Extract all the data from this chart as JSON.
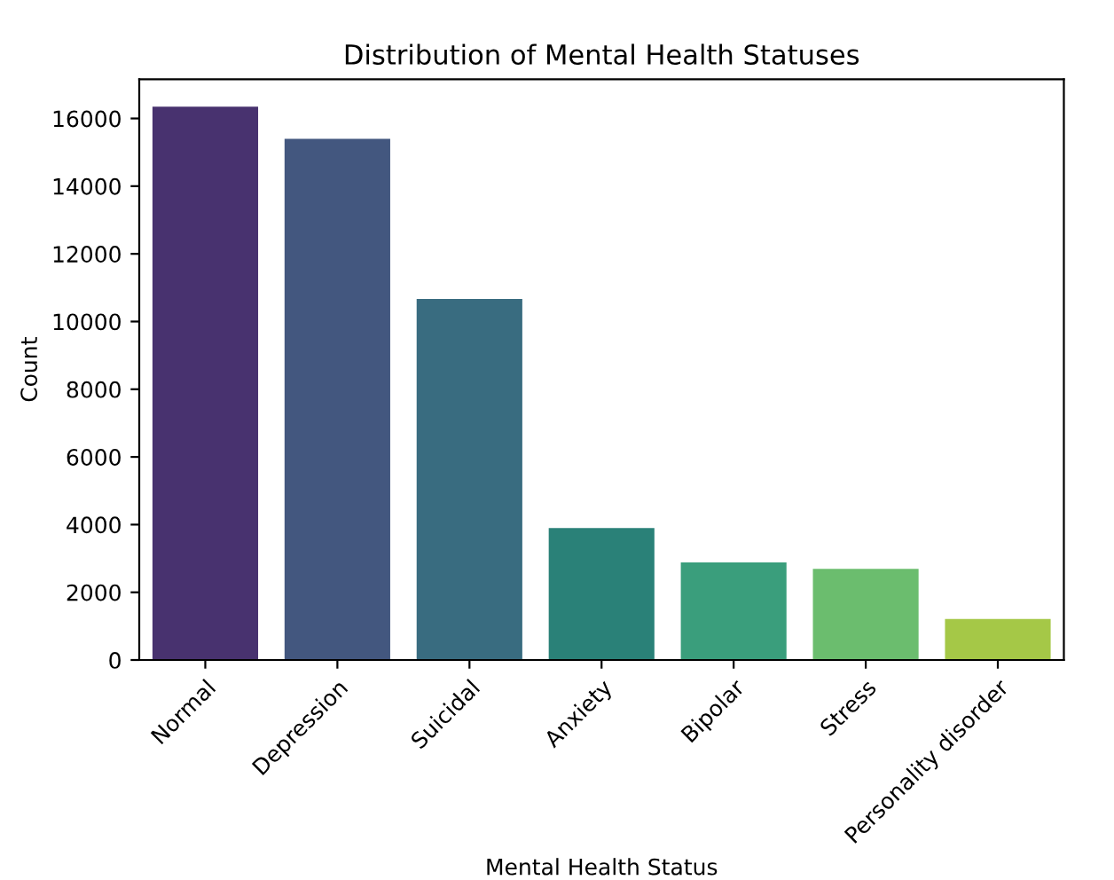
{
  "chart_data": {
    "type": "bar",
    "title": "Distribution of Mental Health Statuses",
    "xlabel": "Mental Health Status",
    "ylabel": "Count",
    "categories": [
      "Normal",
      "Depression",
      "Suicidal",
      "Anxiety",
      "Bipolar",
      "Stress",
      "Personality disorder"
    ],
    "values": [
      16350,
      15400,
      10670,
      3900,
      2880,
      2690,
      1210
    ],
    "colors": [
      "#48326f",
      "#43577f",
      "#396c80",
      "#2a8178",
      "#3a9e7c",
      "#6bbd6e",
      "#a5c847"
    ],
    "ylim": [
      0,
      17160
    ],
    "yticks": [
      0,
      2000,
      4000,
      6000,
      8000,
      10000,
      12000,
      14000,
      16000
    ],
    "grid": false
  }
}
